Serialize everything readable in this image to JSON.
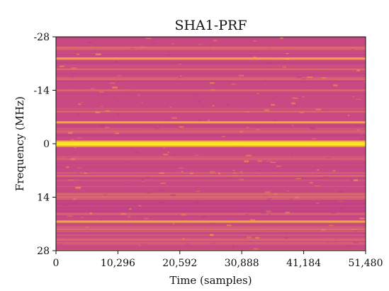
{
  "chart_data": {
    "type": "heatmap",
    "title": "SHA1-PRF",
    "xlabel": "Time (samples)",
    "ylabel": "Frequency (MHz)",
    "xlim": [
      0,
      51480
    ],
    "ylim": [
      -28,
      28
    ],
    "y_inverted": true,
    "x_ticks": [
      0,
      10296,
      20592,
      30888,
      41184,
      51480
    ],
    "x_tick_labels": [
      "0",
      "10,296",
      "20,592",
      "30,888",
      "41,184",
      "51,480"
    ],
    "y_ticks": [
      -28,
      -14,
      0,
      14,
      28
    ],
    "y_tick_labels": [
      "-28",
      "-14",
      "0",
      "14",
      "28"
    ],
    "colormap": "plasma",
    "colors": {
      "background": "#c94a82",
      "peak": "#f9e91e",
      "strong": "#f7b33a",
      "medium": "#ec8560",
      "low": "#b83b84"
    },
    "strong_lines_mhz": [
      {
        "frequency": -22.3,
        "intensity": 0.85
      },
      {
        "frequency": -5.6,
        "intensity": 0.85
      },
      {
        "frequency": 0,
        "intensity": 1.0
      },
      {
        "frequency": 20.4,
        "intensity": 0.85
      }
    ],
    "medium_lines_mhz": [
      {
        "frequency": -25.2,
        "intensity": 0.55
      },
      {
        "frequency": -19.5,
        "intensity": 0.5
      },
      {
        "frequency": -14.0,
        "intensity": 0.55
      },
      {
        "frequency": -8.4,
        "intensity": 0.55
      },
      {
        "frequency": 8.4,
        "intensity": 0.6
      },
      {
        "frequency": 14.0,
        "intensity": 0.6
      },
      {
        "frequency": 22.4,
        "intensity": 0.55
      },
      {
        "frequency": 25.2,
        "intensity": 0.5
      }
    ]
  }
}
